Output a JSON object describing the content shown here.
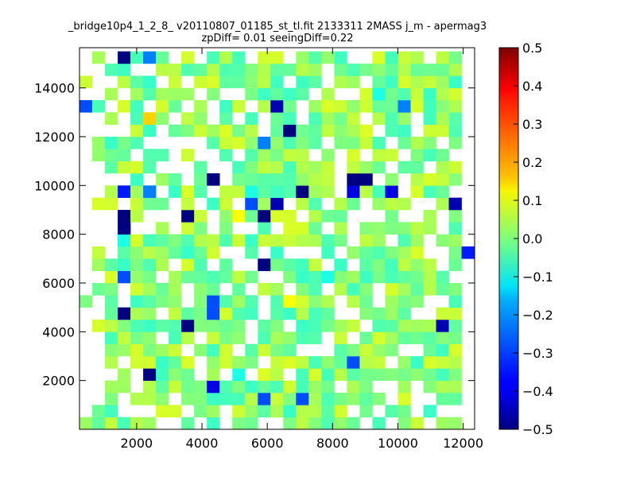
{
  "chart_data": {
    "type": "heatmap",
    "title_lines": [
      "_bridge10p4_1_2_8_ v20110807_01185_st_tl.fit 2133311 2MASS j_m - apermag3",
      "zpDiff= 0.01 seeingDiff=0.22"
    ],
    "xlabel": "",
    "ylabel": "",
    "xlim": [
      250,
      12350
    ],
    "ylim": [
      0,
      15650
    ],
    "xticks": [
      2000,
      4000,
      6000,
      8000,
      10000,
      12000
    ],
    "yticks": [
      2000,
      4000,
      6000,
      8000,
      10000,
      12000,
      14000
    ],
    "cell_size_x": 390,
    "cell_size_y": 500,
    "x0": 250,
    "y0": 0,
    "n_cols": 31,
    "n_rows": 31,
    "colorbar": {
      "colormap": "jet",
      "vmin": -0.5,
      "vmax": 0.5,
      "ticks": [
        -0.5,
        -0.4,
        -0.3,
        -0.2,
        -0.1,
        0.0,
        0.1,
        0.2,
        0.3,
        0.4,
        0.5
      ]
    },
    "fill_fraction": 0.72,
    "seed": 2133311,
    "outliers": [
      {
        "x": 1750,
        "y": 15350,
        "value": -0.5
      },
      {
        "x": 2230,
        "y": 15350,
        "value": -0.25
      },
      {
        "x": 450,
        "y": 13350,
        "value": -0.3
      },
      {
        "x": 2230,
        "y": 12900,
        "value": 0.17
      },
      {
        "x": 6300,
        "y": 13350,
        "value": -0.45
      },
      {
        "x": 6830,
        "y": 12400,
        "value": -0.5
      },
      {
        "x": 6030,
        "y": 11950,
        "value": -0.25
      },
      {
        "x": 4220,
        "y": 10450,
        "value": -0.5
      },
      {
        "x": 8470,
        "y": 10450,
        "value": -0.5
      },
      {
        "x": 9170,
        "y": 10450,
        "value": -0.5
      },
      {
        "x": 1750,
        "y": 9950,
        "value": -0.35
      },
      {
        "x": 2230,
        "y": 9500,
        "value": -0.25
      },
      {
        "x": 5530,
        "y": 9500,
        "value": -0.1
      },
      {
        "x": 7250,
        "y": 9500,
        "value": -0.5
      },
      {
        "x": 8470,
        "y": 9500,
        "value": -0.4
      },
      {
        "x": 9870,
        "y": 9500,
        "value": -0.4
      },
      {
        "x": 5530,
        "y": 9050,
        "value": -0.3
      },
      {
        "x": 6300,
        "y": 9050,
        "value": -0.45
      },
      {
        "x": 11820,
        "y": 9050,
        "value": -0.45
      },
      {
        "x": 1750,
        "y": 8550,
        "value": -0.5
      },
      {
        "x": 3460,
        "y": 8550,
        "value": -0.5
      },
      {
        "x": 4930,
        "y": 8550,
        "value": 0.12
      },
      {
        "x": 5830,
        "y": 8550,
        "value": -0.5
      },
      {
        "x": 1430,
        "y": 8050,
        "value": -0.5
      },
      {
        "x": 1430,
        "y": 7600,
        "value": -0.1
      },
      {
        "x": 12050,
        "y": 7100,
        "value": -0.35
      },
      {
        "x": 5830,
        "y": 6650,
        "value": -0.5
      },
      {
        "x": 1430,
        "y": 6150,
        "value": -0.3
      },
      {
        "x": 4220,
        "y": 6150,
        "value": -0.05
      },
      {
        "x": 7670,
        "y": 6150,
        "value": -0.1
      },
      {
        "x": 6560,
        "y": 5200,
        "value": 0.12
      },
      {
        "x": 4220,
        "y": 5200,
        "value": -0.3
      },
      {
        "x": 1430,
        "y": 4700,
        "value": -0.5
      },
      {
        "x": 4220,
        "y": 4700,
        "value": -0.3
      },
      {
        "x": 3700,
        "y": 4200,
        "value": -0.5
      },
      {
        "x": 11500,
        "y": 4200,
        "value": -0.45
      },
      {
        "x": 8470,
        "y": 2800,
        "value": -0.3
      },
      {
        "x": 2230,
        "y": 2250,
        "value": -0.5
      },
      {
        "x": 4930,
        "y": 2250,
        "value": -0.1
      },
      {
        "x": 4220,
        "y": 1800,
        "value": -0.4
      },
      {
        "x": 6030,
        "y": 1350,
        "value": -0.3
      },
      {
        "x": 7250,
        "y": 1350,
        "value": -0.3
      },
      {
        "x": 10030,
        "y": 13350,
        "value": -0.25
      },
      {
        "x": 9480,
        "y": 13800,
        "value": -0.1
      },
      {
        "x": 9870,
        "y": 12900,
        "value": -0.05
      },
      {
        "x": 1200,
        "y": 9500,
        "value": 0.05
      },
      {
        "x": 10030,
        "y": 7600,
        "value": -0.05
      }
    ]
  }
}
